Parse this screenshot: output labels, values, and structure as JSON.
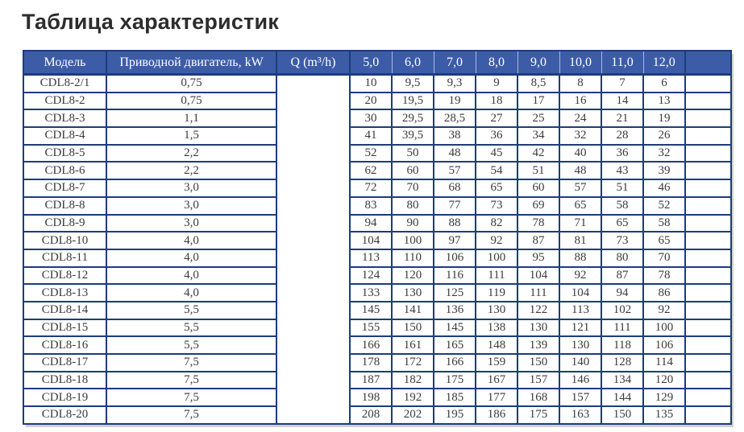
{
  "page": {
    "title": "Таблица характеристик"
  },
  "table": {
    "header": {
      "model": "Модель",
      "motor": "Приводной двигатель, kW",
      "q_flow": "Q (m³/h)",
      "flow_columns": [
        "5,0",
        "6,0",
        "7,0",
        "8,0",
        "9,0",
        "10,0",
        "11,0",
        "12,0"
      ],
      "trailing_blank": ""
    },
    "rows": [
      {
        "model": "CDL8-2/1",
        "motor": "0,75",
        "values": [
          "10",
          "9,5",
          "9,3",
          "9",
          "8,5",
          "8",
          "7",
          "6"
        ]
      },
      {
        "model": "CDL8-2",
        "motor": "0,75",
        "values": [
          "20",
          "19,5",
          "19",
          "18",
          "17",
          "16",
          "14",
          "13"
        ]
      },
      {
        "model": "CDL8-3",
        "motor": "1,1",
        "values": [
          "30",
          "29,5",
          "28,5",
          "27",
          "25",
          "24",
          "21",
          "19"
        ]
      },
      {
        "model": "CDL8-4",
        "motor": "1,5",
        "values": [
          "41",
          "39,5",
          "38",
          "36",
          "34",
          "32",
          "28",
          "26"
        ]
      },
      {
        "model": "CDL8-5",
        "motor": "2,2",
        "values": [
          "52",
          "50",
          "48",
          "45",
          "42",
          "40",
          "36",
          "32"
        ]
      },
      {
        "model": "CDL8-6",
        "motor": "2,2",
        "values": [
          "62",
          "60",
          "57",
          "54",
          "51",
          "48",
          "43",
          "39"
        ]
      },
      {
        "model": "CDL8-7",
        "motor": "3,0",
        "values": [
          "72",
          "70",
          "68",
          "65",
          "60",
          "57",
          "51",
          "46"
        ]
      },
      {
        "model": "CDL8-8",
        "motor": "3,0",
        "values": [
          "83",
          "80",
          "77",
          "73",
          "69",
          "65",
          "58",
          "52"
        ]
      },
      {
        "model": "CDL8-9",
        "motor": "3,0",
        "values": [
          "94",
          "90",
          "88",
          "82",
          "78",
          "71",
          "65",
          "58"
        ]
      },
      {
        "model": "CDL8-10",
        "motor": "4,0",
        "values": [
          "104",
          "100",
          "97",
          "92",
          "87",
          "81",
          "73",
          "65"
        ]
      },
      {
        "model": "CDL8-11",
        "motor": "4,0",
        "values": [
          "113",
          "110",
          "106",
          "100",
          "95",
          "88",
          "80",
          "70"
        ]
      },
      {
        "model": "CDL8-12",
        "motor": "4,0",
        "values": [
          "124",
          "120",
          "116",
          "111",
          "104",
          "92",
          "87",
          "78"
        ]
      },
      {
        "model": "CDL8-13",
        "motor": "4,0",
        "values": [
          "133",
          "130",
          "125",
          "119",
          "111",
          "104",
          "94",
          "86"
        ]
      },
      {
        "model": "CDL8-14",
        "motor": "5,5",
        "values": [
          "145",
          "141",
          "136",
          "130",
          "122",
          "113",
          "102",
          "92"
        ]
      },
      {
        "model": "CDL8-15",
        "motor": "5,5",
        "values": [
          "155",
          "150",
          "145",
          "138",
          "130",
          "121",
          "111",
          "100"
        ]
      },
      {
        "model": "CDL8-16",
        "motor": "5,5",
        "values": [
          "166",
          "161",
          "165",
          "148",
          "139",
          "130",
          "118",
          "106"
        ]
      },
      {
        "model": "CDL8-17",
        "motor": "7,5",
        "values": [
          "178",
          "172",
          "166",
          "159",
          "150",
          "140",
          "128",
          "114"
        ]
      },
      {
        "model": "CDL8-18",
        "motor": "7,5",
        "values": [
          "187",
          "182",
          "175",
          "167",
          "157",
          "146",
          "134",
          "120"
        ]
      },
      {
        "model": "CDL8-19",
        "motor": "7,5",
        "values": [
          "198",
          "192",
          "185",
          "177",
          "168",
          "157",
          "144",
          "129"
        ]
      },
      {
        "model": "CDL8-20",
        "motor": "7,5",
        "values": [
          "208",
          "202",
          "195",
          "186",
          "175",
          "163",
          "150",
          "135"
        ]
      }
    ]
  },
  "colors": {
    "header_bg": "#3c5ca7",
    "table_border": "#1c3c7c",
    "header_light_divider": "#aab9de",
    "header_text": "#ffffff",
    "body_text": "#3b3b3b",
    "title_text": "#2d2d2d"
  }
}
